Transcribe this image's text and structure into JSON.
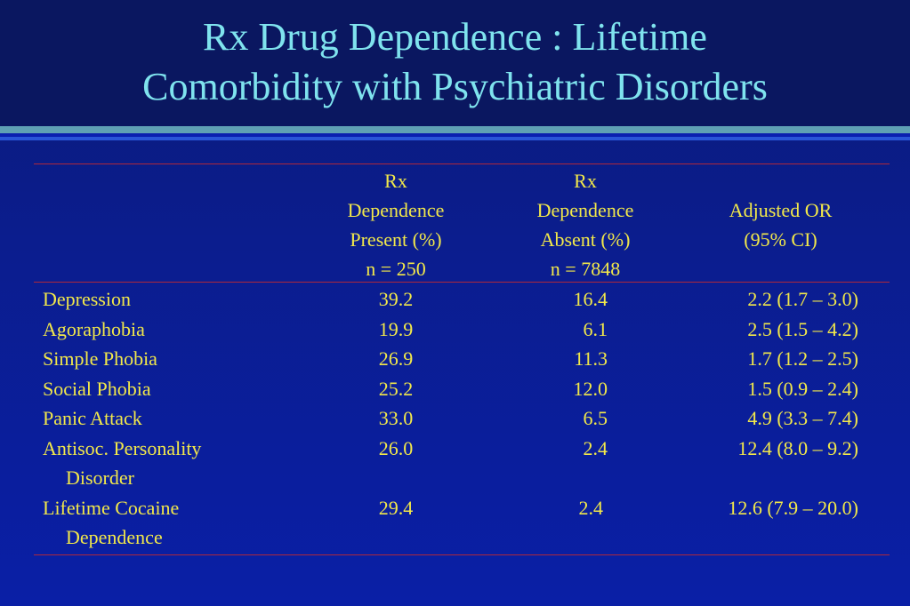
{
  "title": {
    "line1": "Rx Drug Dependence : Lifetime",
    "line2": "Comorbidity with Psychiatric Disorders"
  },
  "table": {
    "headers": [
      {
        "lines": [
          "Rx",
          "Dependence",
          "Present (%)",
          "n = 250"
        ]
      },
      {
        "lines": [
          "Rx",
          "Dependence",
          "Absent (%)",
          "n = 7848"
        ]
      },
      {
        "lines": [
          "Adjusted OR",
          "(95% CI)"
        ]
      }
    ],
    "rows": [
      {
        "label": [
          "Depression"
        ],
        "present": "39.2",
        "absent": "16.4",
        "or": "2.2 (1.7 – 3.0)"
      },
      {
        "label": [
          "Agoraphobia"
        ],
        "present": "19.9",
        "absent": "6.1",
        "or": "2.5 (1.5 – 4.2)"
      },
      {
        "label": [
          "Simple Phobia"
        ],
        "present": "26.9",
        "absent": "11.3",
        "or": "1.7 (1.2 – 2.5)"
      },
      {
        "label": [
          "Social Phobia"
        ],
        "present": "25.2",
        "absent": "12.0",
        "or": "1.5 (0.9 – 2.4)"
      },
      {
        "label": [
          "Panic Attack"
        ],
        "present": "33.0",
        "absent": "6.5",
        "or": "4.9 (3.3 – 7.4)"
      },
      {
        "label": [
          "Antisoc. Personality",
          "Disorder"
        ],
        "present": "26.0",
        "absent": "2.4",
        "or": "12.4 (8.0 – 9.2)"
      },
      {
        "label": [
          "Lifetime Cocaine",
          "Dependence"
        ],
        "present": "29.4",
        "absent": "2.4",
        "or": "12.6 (7.9 – 20.0)"
      }
    ]
  }
}
